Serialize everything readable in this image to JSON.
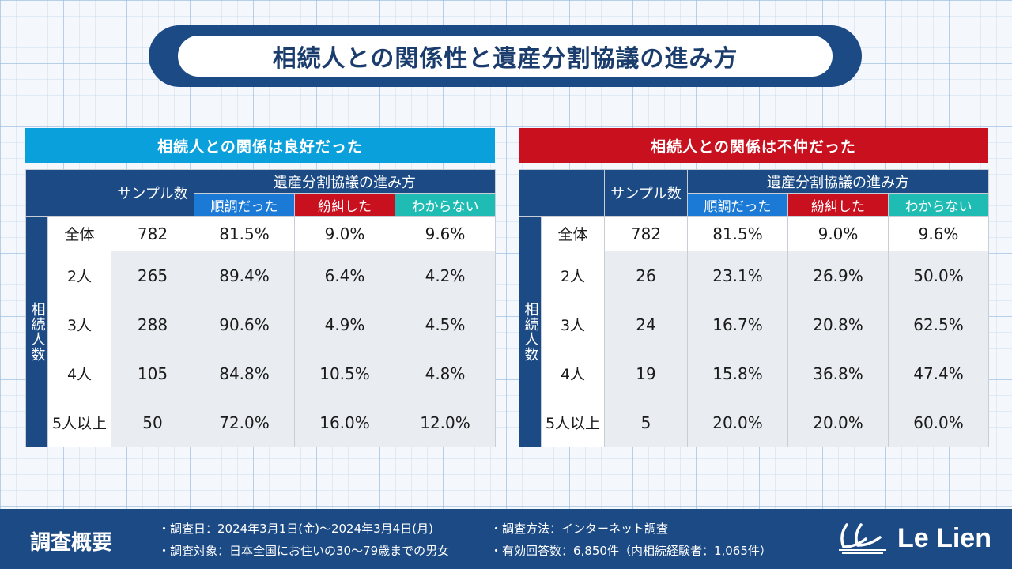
{
  "title": "相続人との関係性と遺産分割協議の進み方",
  "columns": {
    "sample": "サンプル数",
    "progress_header": "遺産分割協議の進み方",
    "smooth": "順調だった",
    "dispute": "紛糾した",
    "unknown": "わからない",
    "group_label": "相続人数"
  },
  "panels": [
    {
      "header": "相続人との関係は良好だった",
      "rows": [
        {
          "label": "全体",
          "sample": "782",
          "smooth": "81.5%",
          "dispute": "9.0%",
          "unknown": "9.6%"
        },
        {
          "label": "2人",
          "sample": "265",
          "smooth": "89.4%",
          "dispute": "6.4%",
          "unknown": "4.2%"
        },
        {
          "label": "3人",
          "sample": "288",
          "smooth": "90.6%",
          "dispute": "4.9%",
          "unknown": "4.5%"
        },
        {
          "label": "4人",
          "sample": "105",
          "smooth": "84.8%",
          "dispute": "10.5%",
          "unknown": "4.8%"
        },
        {
          "label": "5人以上",
          "sample": "50",
          "smooth": "72.0%",
          "dispute": "16.0%",
          "unknown": "12.0%"
        }
      ]
    },
    {
      "header": "相続人との関係は不仲だった",
      "rows": [
        {
          "label": "全体",
          "sample": "782",
          "smooth": "81.5%",
          "dispute": "9.0%",
          "unknown": "9.6%"
        },
        {
          "label": "2人",
          "sample": "26",
          "smooth": "23.1%",
          "dispute": "26.9%",
          "unknown": "50.0%"
        },
        {
          "label": "3人",
          "sample": "24",
          "smooth": "16.7%",
          "dispute": "20.8%",
          "unknown": "62.5%"
        },
        {
          "label": "4人",
          "sample": "19",
          "smooth": "15.8%",
          "dispute": "36.8%",
          "unknown": "47.4%"
        },
        {
          "label": "5人以上",
          "sample": "5",
          "smooth": "20.0%",
          "dispute": "20.0%",
          "unknown": "60.0%"
        }
      ]
    }
  ],
  "footer": {
    "title": "調査概要",
    "date": "・調査日：2024年3月1日(金)〜2024年3月4日(月)",
    "target": "・調査対象：日本全国にお住いの30〜79歳までの男女",
    "method": "・調査方法：インターネット調査",
    "responses": "・有効回答数：6,850件（内相続経験者：1,065件）",
    "logo": "Le Lien"
  },
  "colors": {
    "navy": "#1b4a85",
    "good_header": "#0aa0dc",
    "bad_header": "#c8101e",
    "smooth": "#1a7ad6",
    "unknown": "#1fbcb4"
  }
}
